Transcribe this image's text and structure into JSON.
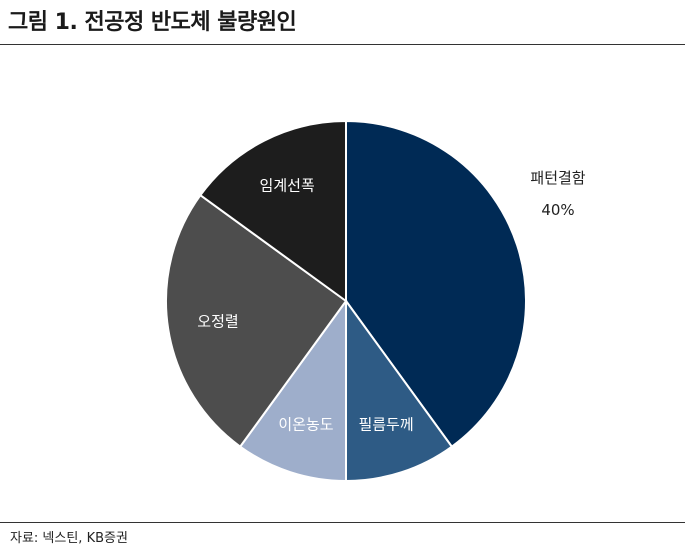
{
  "title": "그림 1. 전공정 반도체 불량원인",
  "source": "자료: 넥스틴, KB증권",
  "chart_data": {
    "type": "pie",
    "start_angle_deg": 0,
    "direction": "clockwise",
    "slices": [
      {
        "label": "패턴결함",
        "value": 40,
        "value_label": "40%",
        "color": "#002a55",
        "label_color": "#222222",
        "label_outside": true
      },
      {
        "label": "필름두께",
        "value": 10,
        "color": "#2e5b85",
        "label_color": "#ffffff",
        "label_outside": false
      },
      {
        "label": "이온농도",
        "value": 10,
        "color": "#9eaecb",
        "label_color": "#ffffff",
        "label_outside": false
      },
      {
        "label": "오정렬",
        "value": 25,
        "color": "#4d4d4d",
        "label_color": "#ffffff",
        "label_outside": false
      },
      {
        "label": "임계선폭",
        "value": 15,
        "color": "#1d1d1d",
        "label_color": "#ffffff",
        "label_outside": false
      }
    ]
  }
}
